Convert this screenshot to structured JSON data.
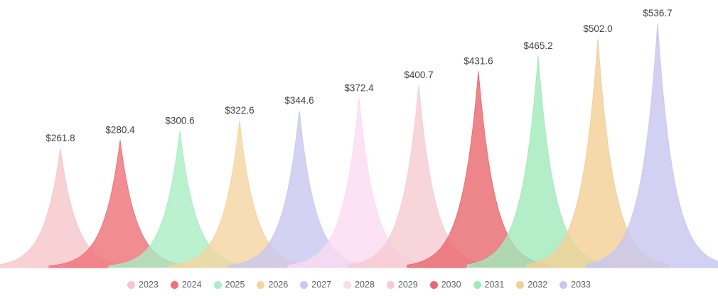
{
  "chart_data": {
    "type": "area",
    "variant": "peaks",
    "title": "",
    "xlabel": "",
    "ylabel": "",
    "legend_position": "bottom",
    "grid": false,
    "ylim": [
      0,
      560
    ],
    "categories": [
      "2023",
      "2024",
      "2025",
      "2026",
      "2027",
      "2028",
      "2029",
      "2030",
      "2031",
      "2032",
      "2033"
    ],
    "values": [
      261.8,
      280.4,
      300.6,
      322.6,
      344.6,
      372.4,
      400.7,
      431.6,
      465.2,
      502.0,
      536.7
    ],
    "value_labels": [
      "$261.8",
      "$280.4",
      "$300.6",
      "$322.6",
      "$344.6",
      "$372.4",
      "$400.7",
      "$431.6",
      "$465.2",
      "$502.0",
      "$536.7"
    ],
    "unit_prefix": "$",
    "colors": [
      "#f6c6ca",
      "#ed7177",
      "#a9edc2",
      "#f4d4a0",
      "#c8c7f0",
      "#fbdbf1",
      "#f6cbd2",
      "#e9686e",
      "#a1eabb",
      "#f3cf96",
      "#c7c6f1"
    ],
    "label_color": "#404040",
    "legend_text_color": "#5f6368"
  }
}
